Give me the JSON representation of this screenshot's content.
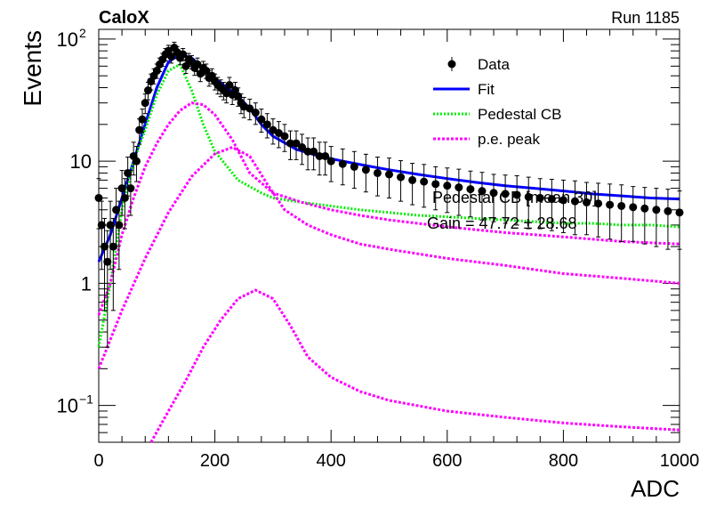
{
  "header": {
    "left_title": "CaloX",
    "right_title": "Run 1185"
  },
  "overlay_text": {
    "line1": "Pedestal CB [mean 30]",
    "line2": "Gain = 47.72 ± 28.68"
  },
  "colors": {
    "data": "#000000",
    "fit": "#0000ff",
    "pedestal": "#00ee00",
    "pe": "#ff00ff"
  },
  "chart_data": {
    "type": "scatter",
    "title": "",
    "xlabel": "ADC",
    "ylabel": "Events",
    "xlim": [
      0,
      1000
    ],
    "ylim": [
      0.05,
      120
    ],
    "y_scale": "log",
    "grid": false,
    "legend_position": "top-right",
    "legend": [
      {
        "label": "Data",
        "style": "marker"
      },
      {
        "label": "Fit",
        "style": "solid"
      },
      {
        "label": "Pedestal CB",
        "style": "dotted"
      },
      {
        "label": "p.e. peak",
        "style": "dotted"
      }
    ],
    "x_ticks": [
      {
        "value": 0,
        "label": "0"
      },
      {
        "value": 200,
        "label": "200"
      },
      {
        "value": 400,
        "label": "400"
      },
      {
        "value": 600,
        "label": "600"
      },
      {
        "value": 800,
        "label": "800"
      },
      {
        "value": 1000,
        "label": "1000"
      }
    ],
    "y_ticks": [
      {
        "value": 0.1,
        "label": "10",
        "sup": "−1"
      },
      {
        "value": 1,
        "label": "1",
        "sup": ""
      },
      {
        "value": 10,
        "label": "10",
        "sup": ""
      },
      {
        "value": 100,
        "label": "10",
        "sup": "2"
      }
    ],
    "series": [
      {
        "name": "Data",
        "kind": "points",
        "x": [
          0,
          5,
          10,
          15,
          20,
          25,
          30,
          35,
          40,
          45,
          50,
          55,
          60,
          65,
          70,
          75,
          80,
          85,
          90,
          95,
          100,
          105,
          110,
          115,
          120,
          125,
          130,
          135,
          140,
          145,
          150,
          155,
          160,
          165,
          170,
          175,
          180,
          185,
          190,
          195,
          200,
          205,
          210,
          215,
          220,
          225,
          230,
          235,
          240,
          245,
          250,
          260,
          270,
          280,
          290,
          300,
          310,
          320,
          330,
          340,
          350,
          360,
          370,
          380,
          390,
          400,
          420,
          440,
          460,
          480,
          500,
          520,
          540,
          560,
          580,
          600,
          620,
          640,
          660,
          680,
          700,
          720,
          740,
          760,
          780,
          800,
          820,
          840,
          860,
          880,
          900,
          920,
          940,
          960,
          980,
          1000
        ],
        "y": [
          5,
          3,
          2,
          1.5,
          3,
          2,
          4,
          3,
          6,
          5,
          8,
          6,
          11,
          10,
          18,
          22,
          30,
          38,
          45,
          50,
          55,
          62,
          68,
          75,
          80,
          72,
          85,
          78,
          70,
          75,
          60,
          68,
          65,
          58,
          62,
          52,
          58,
          55,
          48,
          50,
          45,
          42,
          40,
          38,
          36,
          42,
          35,
          38,
          34,
          30,
          28,
          27,
          25,
          22,
          20,
          18,
          17,
          16,
          14,
          14,
          13,
          12,
          12,
          11,
          11,
          10,
          9.5,
          9,
          8.5,
          8,
          7.8,
          7.4,
          7,
          6.8,
          6.5,
          6.3,
          6.1,
          5.9,
          5.7,
          5.5,
          5.4,
          5.3,
          5.1,
          5,
          4.9,
          4.8,
          4.7,
          4.6,
          4.5,
          4.4,
          4.3,
          4.2,
          4.1,
          4,
          3.9,
          3.8
        ],
        "y_err": [
          2.2,
          1.7,
          1.4,
          1.2,
          1.7,
          1.4,
          2,
          1.7,
          2.4,
          2.2,
          2.8,
          2.4,
          3.3,
          3.2,
          4.2,
          4.7,
          5.5,
          6.2,
          6.7,
          7.1,
          7.4,
          7.9,
          8.2,
          8.7,
          8.9,
          8.5,
          9.2,
          8.8,
          8.4,
          8.7,
          7.7,
          8.2,
          8.1,
          7.6,
          7.9,
          7.2,
          7.6,
          7.4,
          6.9,
          7.1,
          6.7,
          6.5,
          6.3,
          6.2,
          6,
          6.5,
          5.9,
          6.2,
          5.8,
          5.5,
          5.3,
          5.2,
          5,
          4.7,
          4.5,
          4.2,
          4.1,
          4,
          3.7,
          3.7,
          3.6,
          3.5,
          3.5,
          3.3,
          3.3,
          3.2,
          3.1,
          3,
          2.9,
          2.8,
          2.8,
          2.7,
          2.6,
          2.6,
          2.5,
          2.5,
          2.5,
          2.4,
          2.4,
          2.3,
          2.3,
          2.3,
          2.3,
          2.2,
          2.2,
          2.2,
          2.2,
          2.1,
          2.1,
          2.1,
          2.1,
          2,
          2,
          2,
          2,
          1.9
        ]
      },
      {
        "name": "Fit",
        "kind": "line",
        "x": [
          0,
          20,
          40,
          60,
          80,
          100,
          120,
          140,
          160,
          180,
          200,
          220,
          240,
          260,
          280,
          300,
          340,
          380,
          420,
          460,
          500,
          550,
          600,
          650,
          700,
          750,
          800,
          850,
          900,
          950,
          1000
        ],
        "y": [
          1.5,
          2.5,
          5,
          10,
          20,
          40,
          65,
          75,
          70,
          58,
          48,
          40,
          34,
          27,
          20,
          16,
          12.5,
          11,
          10,
          9.2,
          8.5,
          7.8,
          7.2,
          6.7,
          6.3,
          6,
          5.7,
          5.4,
          5.2,
          5,
          4.9
        ]
      },
      {
        "name": "Pedestal CB",
        "kind": "dotted",
        "x": [
          0,
          20,
          40,
          60,
          80,
          100,
          120,
          140,
          160,
          180,
          200,
          240,
          280,
          300,
          350,
          400,
          450,
          500,
          550,
          600,
          650,
          700,
          750,
          800,
          850,
          900,
          950,
          1000
        ],
        "y": [
          0.3,
          1,
          4,
          10,
          18,
          35,
          55,
          62,
          38,
          20,
          12,
          7,
          5.5,
          5,
          4.6,
          4.3,
          4,
          3.8,
          3.6,
          3.5,
          3.4,
          3.3,
          3.2,
          3.1,
          3.1,
          3,
          3,
          2.9
        ]
      },
      {
        "name": "p.e. peak 1",
        "kind": "dotted",
        "x": [
          0,
          20,
          40,
          60,
          80,
          100,
          120,
          140,
          160,
          180,
          200,
          230,
          260,
          300,
          350,
          400,
          450,
          500,
          600,
          700,
          800,
          900,
          1000
        ],
        "y": [
          0.55,
          1,
          2.5,
          5,
          9,
          14,
          20,
          26,
          30,
          29,
          24,
          15,
          8,
          5.5,
          4.6,
          4,
          3.6,
          3.3,
          2.9,
          2.6,
          2.4,
          2.2,
          2.1
        ]
      },
      {
        "name": "p.e. peak 2",
        "kind": "dotted",
        "x": [
          0,
          40,
          80,
          120,
          160,
          200,
          230,
          260,
          290,
          320,
          360,
          400,
          450,
          500,
          600,
          700,
          800,
          900,
          1000
        ],
        "y": [
          0.2,
          0.6,
          1.6,
          3.8,
          7.5,
          11.5,
          13,
          11,
          6.5,
          4,
          3,
          2.5,
          2.1,
          1.9,
          1.6,
          1.4,
          1.2,
          1.1,
          1
        ]
      },
      {
        "name": "p.e. peak 3",
        "kind": "dotted",
        "x": [
          90,
          120,
          150,
          180,
          210,
          240,
          270,
          300,
          330,
          360,
          400,
          450,
          500,
          600,
          700,
          800,
          900,
          1000
        ],
        "y": [
          0.05,
          0.09,
          0.16,
          0.3,
          0.5,
          0.75,
          0.88,
          0.75,
          0.45,
          0.25,
          0.17,
          0.13,
          0.11,
          0.09,
          0.08,
          0.072,
          0.067,
          0.063
        ]
      }
    ]
  }
}
